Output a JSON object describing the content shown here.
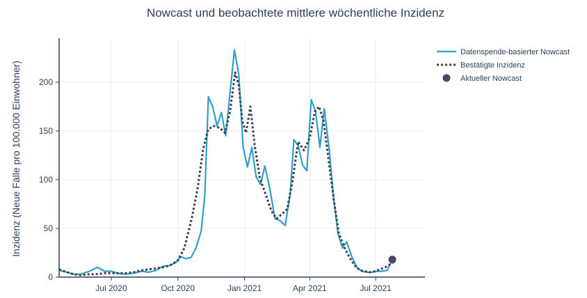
{
  "chart_data": {
    "type": "line",
    "title": "Nowcast und beobachtete mittlere wöchentliche Inzidenz",
    "xlabel": "",
    "ylabel": "Inzidenz (Neue Fälle pro 100.000 Einwohner)",
    "xlim": [
      "2020-04-20",
      "2021-09-07"
    ],
    "ylim": [
      0,
      245
    ],
    "x_ticks": [
      {
        "date": "2020-07-01",
        "label": "Jul 2020"
      },
      {
        "date": "2020-10-01",
        "label": "Oct 2020"
      },
      {
        "date": "2021-01-01",
        "label": "Jan 2021"
      },
      {
        "date": "2021-04-01",
        "label": "Apr 2021"
      },
      {
        "date": "2021-07-01",
        "label": "Jul 2021"
      }
    ],
    "y_ticks": [
      0,
      50,
      100,
      150,
      200
    ],
    "grid": true,
    "legend_position": "top-right",
    "series": [
      {
        "name": "Datenspende-basierter Nowcast",
        "style": "solid",
        "color": "#2e9fc9",
        "points": [
          [
            "2020-04-20",
            7
          ],
          [
            "2020-05-01",
            5
          ],
          [
            "2020-05-10",
            3
          ],
          [
            "2020-05-20",
            3
          ],
          [
            "2020-06-01",
            6
          ],
          [
            "2020-06-12",
            10
          ],
          [
            "2020-06-22",
            6
          ],
          [
            "2020-07-01",
            6
          ],
          [
            "2020-07-10",
            4
          ],
          [
            "2020-07-20",
            3
          ],
          [
            "2020-08-01",
            4
          ],
          [
            "2020-08-12",
            6
          ],
          [
            "2020-08-22",
            5
          ],
          [
            "2020-09-01",
            7
          ],
          [
            "2020-09-10",
            11
          ],
          [
            "2020-09-20",
            12
          ],
          [
            "2020-09-28",
            15
          ],
          [
            "2020-10-05",
            21
          ],
          [
            "2020-10-12",
            19
          ],
          [
            "2020-10-19",
            20
          ],
          [
            "2020-10-26",
            30
          ],
          [
            "2020-11-02",
            47
          ],
          [
            "2020-11-07",
            83
          ],
          [
            "2020-11-12",
            185
          ],
          [
            "2020-11-18",
            175
          ],
          [
            "2020-11-24",
            155
          ],
          [
            "2020-11-30",
            169
          ],
          [
            "2020-12-06",
            145
          ],
          [
            "2020-12-12",
            190
          ],
          [
            "2020-12-18",
            233
          ],
          [
            "2020-12-24",
            208
          ],
          [
            "2020-12-30",
            133
          ],
          [
            "2021-01-05",
            113
          ],
          [
            "2021-01-11",
            133
          ],
          [
            "2021-01-17",
            103
          ],
          [
            "2021-01-23",
            95
          ],
          [
            "2021-01-29",
            114
          ],
          [
            "2021-02-05",
            90
          ],
          [
            "2021-02-12",
            60
          ],
          [
            "2021-02-19",
            58
          ],
          [
            "2021-02-26",
            53
          ],
          [
            "2021-03-05",
            85
          ],
          [
            "2021-03-10",
            141
          ],
          [
            "2021-03-16",
            135
          ],
          [
            "2021-03-22",
            115
          ],
          [
            "2021-03-28",
            109
          ],
          [
            "2021-04-03",
            182
          ],
          [
            "2021-04-09",
            170
          ],
          [
            "2021-04-15",
            133
          ],
          [
            "2021-04-21",
            173
          ],
          [
            "2021-04-28",
            130
          ],
          [
            "2021-05-04",
            80
          ],
          [
            "2021-05-10",
            45
          ],
          [
            "2021-05-16",
            30
          ],
          [
            "2021-05-22",
            36
          ],
          [
            "2021-05-29",
            21
          ],
          [
            "2021-06-05",
            10
          ],
          [
            "2021-06-12",
            6
          ],
          [
            "2021-06-19",
            5
          ],
          [
            "2021-06-26",
            5
          ],
          [
            "2021-07-03",
            6
          ],
          [
            "2021-07-10",
            6
          ],
          [
            "2021-07-17",
            7
          ],
          [
            "2021-07-24",
            18
          ]
        ]
      },
      {
        "name": "Bestätigte Inzidenz",
        "style": "dotted",
        "color": "#3c4150",
        "points": [
          [
            "2020-04-20",
            8
          ],
          [
            "2020-05-01",
            5
          ],
          [
            "2020-05-10",
            3
          ],
          [
            "2020-05-20",
            2
          ],
          [
            "2020-06-01",
            3
          ],
          [
            "2020-06-10",
            3
          ],
          [
            "2020-06-22",
            4
          ],
          [
            "2020-07-01",
            4
          ],
          [
            "2020-07-10",
            4
          ],
          [
            "2020-07-20",
            4
          ],
          [
            "2020-08-01",
            5
          ],
          [
            "2020-08-12",
            7
          ],
          [
            "2020-08-22",
            8
          ],
          [
            "2020-09-01",
            9
          ],
          [
            "2020-09-10",
            10
          ],
          [
            "2020-09-20",
            12
          ],
          [
            "2020-10-01",
            17
          ],
          [
            "2020-10-10",
            30
          ],
          [
            "2020-10-20",
            60
          ],
          [
            "2020-10-28",
            90
          ],
          [
            "2020-11-05",
            132
          ],
          [
            "2020-11-12",
            152
          ],
          [
            "2020-11-20",
            155
          ],
          [
            "2020-11-28",
            153
          ],
          [
            "2020-12-05",
            148
          ],
          [
            "2020-12-12",
            170
          ],
          [
            "2020-12-19",
            210
          ],
          [
            "2020-12-24",
            197
          ],
          [
            "2020-12-29",
            160
          ],
          [
            "2021-01-03",
            148
          ],
          [
            "2021-01-09",
            175
          ],
          [
            "2021-01-15",
            135
          ],
          [
            "2021-01-22",
            102
          ],
          [
            "2021-01-30",
            85
          ],
          [
            "2021-02-07",
            68
          ],
          [
            "2021-02-14",
            60
          ],
          [
            "2021-02-22",
            65
          ],
          [
            "2021-03-01",
            70
          ],
          [
            "2021-03-08",
            98
          ],
          [
            "2021-03-16",
            139
          ],
          [
            "2021-03-24",
            130
          ],
          [
            "2021-04-01",
            143
          ],
          [
            "2021-04-08",
            170
          ],
          [
            "2021-04-14",
            175
          ],
          [
            "2021-04-20",
            160
          ],
          [
            "2021-04-27",
            120
          ],
          [
            "2021-05-04",
            80
          ],
          [
            "2021-05-11",
            45
          ],
          [
            "2021-05-19",
            30
          ],
          [
            "2021-05-26",
            20
          ],
          [
            "2021-06-02",
            12
          ],
          [
            "2021-06-09",
            7
          ],
          [
            "2021-06-16",
            6
          ],
          [
            "2021-06-23",
            5
          ],
          [
            "2021-06-30",
            6
          ],
          [
            "2021-07-07",
            8
          ],
          [
            "2021-07-14",
            10
          ],
          [
            "2021-07-21",
            13
          ],
          [
            "2021-07-28",
            17
          ]
        ]
      },
      {
        "name": "Aktueller Nowcast",
        "style": "marker",
        "color": "#4f4561",
        "points": [
          [
            "2021-07-24",
            18
          ]
        ]
      }
    ]
  }
}
